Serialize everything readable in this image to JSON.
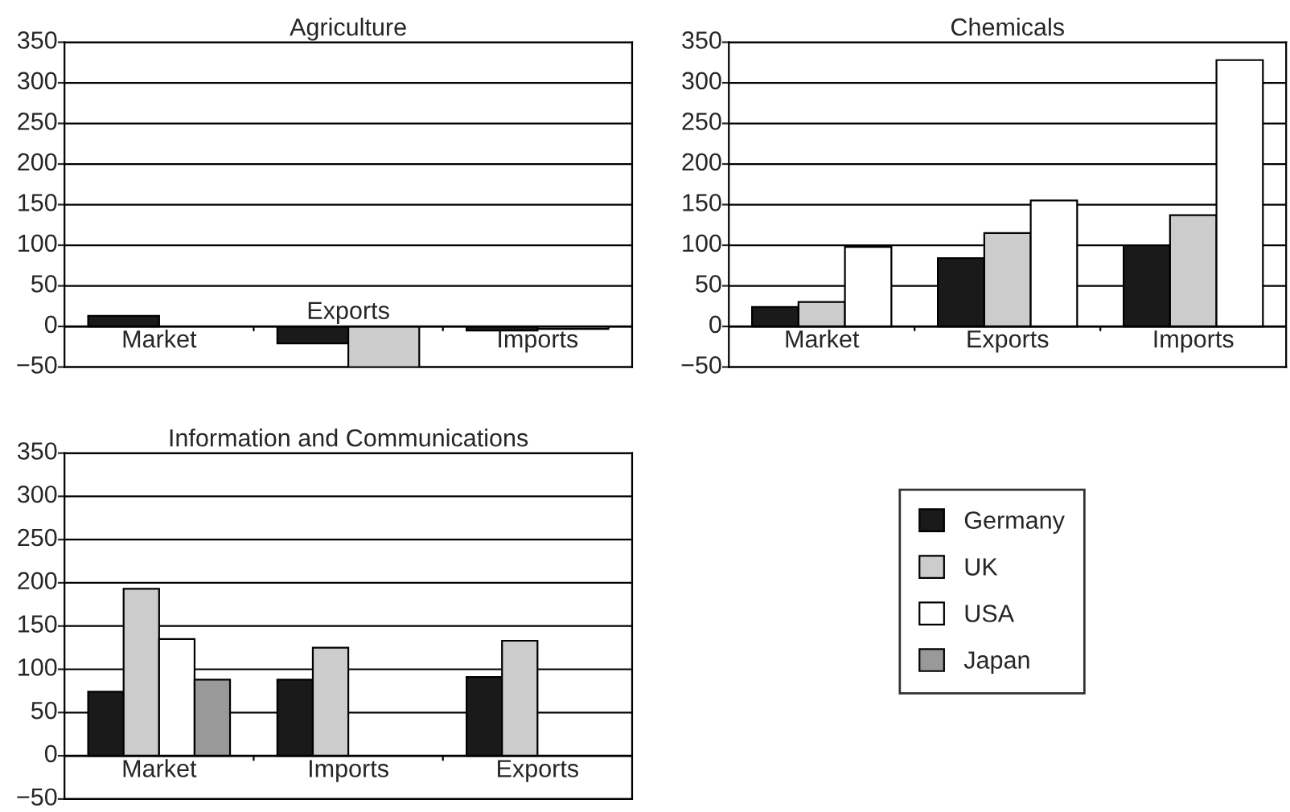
{
  "chart_data": [
    {
      "type": "bar",
      "title": "Agriculture",
      "categories": [
        "Market",
        "Exports",
        "Imports"
      ],
      "series": [
        {
          "color": "#1a1a1a",
          "values": [
            13,
            -21,
            -5
          ]
        },
        {
          "color": "#cccccc",
          "values": [
            null,
            -50,
            -3
          ]
        }
      ],
      "ylim": [
        -50,
        350
      ],
      "yticks": [
        -50,
        0,
        50,
        100,
        150,
        200,
        250,
        300,
        350
      ],
      "grid": "y",
      "legend": false
    },
    {
      "type": "bar",
      "title": "Chemicals",
      "categories": [
        "Market",
        "Exports",
        "Imports"
      ],
      "series": [
        {
          "color": "#1a1a1a",
          "values": [
            24,
            84,
            100
          ]
        },
        {
          "color": "#cccccc",
          "values": [
            30,
            115,
            137
          ]
        },
        {
          "color": "#ffffff",
          "values": [
            98,
            155,
            328
          ]
        }
      ],
      "ylim": [
        -50,
        350
      ],
      "yticks": [
        -50,
        0,
        50,
        100,
        150,
        200,
        250,
        300,
        350
      ],
      "grid": "y",
      "legend": false
    },
    {
      "type": "bar",
      "title": "Information and Communications",
      "categories": [
        "Market",
        "Imports",
        "Exports"
      ],
      "series": [
        {
          "name": "Germany",
          "color": "#1a1a1a",
          "values": [
            74,
            88,
            91
          ]
        },
        {
          "name": "UK",
          "color": "#cccccc",
          "values": [
            193,
            125,
            133
          ]
        },
        {
          "name": "USA",
          "color": "#ffffff",
          "values": [
            135,
            null,
            null
          ]
        },
        {
          "name": "Japan",
          "color": "#999999",
          "values": [
            88,
            null,
            null
          ]
        }
      ],
      "ylim": [
        -50,
        350
      ],
      "yticks": [
        -50,
        0,
        50,
        100,
        150,
        200,
        250,
        300,
        350
      ],
      "grid": "y",
      "legend": "right"
    }
  ]
}
